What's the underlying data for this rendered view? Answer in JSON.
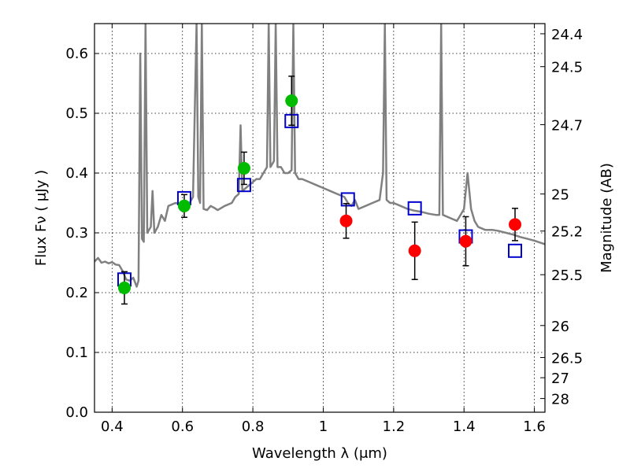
{
  "chart_data": {
    "type": "scatter",
    "xlabel": "Wavelength  λ (μm)",
    "ylabel": "Flux  Fν  ( μJy )",
    "y2label": "Magnitude (AB)",
    "xlim": [
      0.35,
      1.63
    ],
    "ylim": [
      0.0,
      0.65
    ],
    "grid": true,
    "x_ticks": [
      {
        "value": 0.4,
        "label": "0.4"
      },
      {
        "value": 0.6,
        "label": "0.6"
      },
      {
        "value": 0.8,
        "label": "0.8"
      },
      {
        "value": 1.0,
        "label": "1"
      },
      {
        "value": 1.2,
        "label": "1.2"
      },
      {
        "value": 1.4,
        "label": "1.4"
      },
      {
        "value": 1.6,
        "label": "1.6"
      }
    ],
    "y_ticks": [
      {
        "value": 0.0,
        "label": "0.0"
      },
      {
        "value": 0.1,
        "label": "0.1"
      },
      {
        "value": 0.2,
        "label": "0.2"
      },
      {
        "value": 0.3,
        "label": "0.3"
      },
      {
        "value": 0.4,
        "label": "0.4"
      },
      {
        "value": 0.5,
        "label": "0.5"
      },
      {
        "value": 0.6,
        "label": "0.6"
      }
    ],
    "y2_ticks": [
      {
        "label": "24.4",
        "flux": 0.633
      },
      {
        "label": "24.5",
        "flux": 0.578
      },
      {
        "label": "24.7",
        "flux": 0.481
      },
      {
        "label": "25",
        "flux": 0.365
      },
      {
        "label": "25.2",
        "flux": 0.303
      },
      {
        "label": "25.5",
        "flux": 0.23
      },
      {
        "label": "26",
        "flux": 0.145
      },
      {
        "label": "26.5",
        "flux": 0.0915
      },
      {
        "label": "27",
        "flux": 0.0577
      },
      {
        "label": "28",
        "flux": 0.0229
      }
    ],
    "series": [
      {
        "kind": "line",
        "color": "#808080",
        "points": [
          [
            0.35,
            0.252
          ],
          [
            0.36,
            0.258
          ],
          [
            0.37,
            0.25
          ],
          [
            0.38,
            0.252
          ],
          [
            0.39,
            0.249
          ],
          [
            0.4,
            0.251
          ],
          [
            0.41,
            0.247
          ],
          [
            0.42,
            0.246
          ],
          [
            0.43,
            0.236
          ],
          [
            0.44,
            0.222
          ],
          [
            0.45,
            0.22
          ],
          [
            0.46,
            0.225
          ],
          [
            0.47,
            0.21
          ],
          [
            0.475,
            0.22
          ],
          [
            0.48,
            0.6
          ],
          [
            0.485,
            0.29
          ],
          [
            0.49,
            0.285
          ],
          [
            0.495,
            0.65
          ],
          [
            0.5,
            0.3
          ],
          [
            0.51,
            0.31
          ],
          [
            0.515,
            0.37
          ],
          [
            0.52,
            0.3
          ],
          [
            0.53,
            0.31
          ],
          [
            0.54,
            0.33
          ],
          [
            0.55,
            0.32
          ],
          [
            0.56,
            0.345
          ],
          [
            0.58,
            0.35
          ],
          [
            0.6,
            0.347
          ],
          [
            0.62,
            0.35
          ],
          [
            0.63,
            0.36
          ],
          [
            0.64,
            0.65
          ],
          [
            0.645,
            0.36
          ],
          [
            0.65,
            0.35
          ],
          [
            0.655,
            0.65
          ],
          [
            0.66,
            0.34
          ],
          [
            0.67,
            0.338
          ],
          [
            0.68,
            0.345
          ],
          [
            0.69,
            0.342
          ],
          [
            0.7,
            0.338
          ],
          [
            0.72,
            0.345
          ],
          [
            0.74,
            0.35
          ],
          [
            0.75,
            0.36
          ],
          [
            0.76,
            0.365
          ],
          [
            0.765,
            0.48
          ],
          [
            0.77,
            0.37
          ],
          [
            0.78,
            0.375
          ],
          [
            0.79,
            0.38
          ],
          [
            0.8,
            0.385
          ],
          [
            0.81,
            0.39
          ],
          [
            0.82,
            0.39
          ],
          [
            0.83,
            0.4
          ],
          [
            0.84,
            0.41
          ],
          [
            0.845,
            0.65
          ],
          [
            0.85,
            0.41
          ],
          [
            0.86,
            0.42
          ],
          [
            0.865,
            0.65
          ],
          [
            0.87,
            0.41
          ],
          [
            0.88,
            0.41
          ],
          [
            0.89,
            0.4
          ],
          [
            0.9,
            0.4
          ],
          [
            0.91,
            0.405
          ],
          [
            0.915,
            0.65
          ],
          [
            0.92,
            0.4
          ],
          [
            0.93,
            0.39
          ],
          [
            0.94,
            0.39
          ],
          [
            0.96,
            0.385
          ],
          [
            0.98,
            0.38
          ],
          [
            1.0,
            0.375
          ],
          [
            1.02,
            0.37
          ],
          [
            1.04,
            0.365
          ],
          [
            1.06,
            0.36
          ],
          [
            1.07,
            0.35
          ],
          [
            1.08,
            0.345
          ],
          [
            1.09,
            0.355
          ],
          [
            1.1,
            0.34
          ],
          [
            1.12,
            0.345
          ],
          [
            1.14,
            0.35
          ],
          [
            1.16,
            0.355
          ],
          [
            1.17,
            0.4
          ],
          [
            1.175,
            0.65
          ],
          [
            1.18,
            0.355
          ],
          [
            1.19,
            0.35
          ],
          [
            1.2,
            0.35
          ],
          [
            1.22,
            0.345
          ],
          [
            1.24,
            0.34
          ],
          [
            1.26,
            0.337
          ],
          [
            1.28,
            0.335
          ],
          [
            1.3,
            0.332
          ],
          [
            1.32,
            0.33
          ],
          [
            1.33,
            0.33
          ],
          [
            1.335,
            0.65
          ],
          [
            1.34,
            0.33
          ],
          [
            1.36,
            0.325
          ],
          [
            1.38,
            0.32
          ],
          [
            1.39,
            0.33
          ],
          [
            1.4,
            0.34
          ],
          [
            1.41,
            0.4
          ],
          [
            1.42,
            0.34
          ],
          [
            1.43,
            0.32
          ],
          [
            1.44,
            0.31
          ],
          [
            1.46,
            0.305
          ],
          [
            1.48,
            0.305
          ],
          [
            1.5,
            0.303
          ],
          [
            1.52,
            0.3
          ],
          [
            1.54,
            0.297
          ],
          [
            1.56,
            0.293
          ],
          [
            1.58,
            0.29
          ],
          [
            1.6,
            0.287
          ],
          [
            1.62,
            0.283
          ],
          [
            1.63,
            0.281
          ]
        ]
      },
      {
        "kind": "markers",
        "marker": "square",
        "color": "#0000cc",
        "points": [
          {
            "x": 0.435,
            "y": 0.222
          },
          {
            "x": 0.605,
            "y": 0.358
          },
          {
            "x": 0.775,
            "y": 0.38
          },
          {
            "x": 0.91,
            "y": 0.487
          },
          {
            "x": 1.07,
            "y": 0.356
          },
          {
            "x": 1.26,
            "y": 0.341
          },
          {
            "x": 1.405,
            "y": 0.294
          },
          {
            "x": 1.545,
            "y": 0.27
          }
        ]
      },
      {
        "kind": "markers",
        "marker": "circle",
        "color": "#00bb00",
        "points": [
          {
            "x": 0.435,
            "y": 0.208,
            "err": 0.027
          },
          {
            "x": 0.605,
            "y": 0.345,
            "err": 0.019
          },
          {
            "x": 0.775,
            "y": 0.408,
            "err": 0.027
          },
          {
            "x": 0.91,
            "y": 0.521,
            "err": 0.041
          }
        ]
      },
      {
        "kind": "markers",
        "marker": "circle",
        "color": "#ff0000",
        "points": [
          {
            "x": 1.065,
            "y": 0.32,
            "err": 0.029
          },
          {
            "x": 1.26,
            "y": 0.27,
            "err": 0.048
          },
          {
            "x": 1.405,
            "y": 0.286,
            "err": 0.041
          },
          {
            "x": 1.545,
            "y": 0.314,
            "err": 0.027
          }
        ]
      }
    ]
  }
}
